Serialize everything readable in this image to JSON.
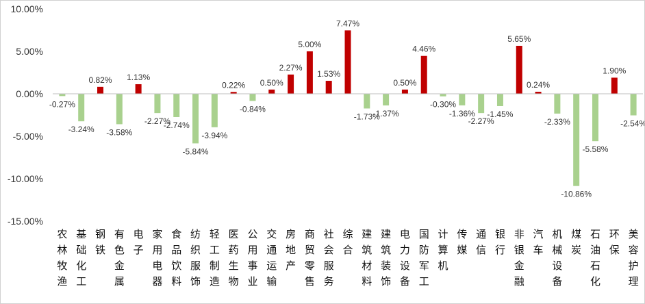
{
  "chart_data": {
    "type": "bar",
    "ylim": [
      -15,
      10
    ],
    "yticks": [
      "10.00%",
      "5.00%",
      "0.00%",
      "-5.00%",
      "-10.00%",
      "-15.00%"
    ],
    "ytick_values": [
      10,
      5,
      0,
      -5,
      -10,
      -15
    ],
    "grid": false,
    "colors": {
      "positive": "#c00000",
      "negative": "#a9d18e"
    },
    "categories": [
      "农林牧渔",
      "基础化工",
      "钢铁",
      "有色金属",
      "电子",
      "家用电器",
      "食品饮料",
      "纺织服饰",
      "轻工制造",
      "医药生物",
      "公用事业",
      "交通运输",
      "房地产",
      "商贸零售",
      "社会服务",
      "综合",
      "建筑材料",
      "建筑装饰",
      "电力设备",
      "国防军工",
      "计算机",
      "传媒",
      "通信",
      "银行",
      "非银金融",
      "汽车",
      "机械设备",
      "煤炭",
      "石油石化",
      "环保",
      "美容护理"
    ],
    "values": [
      -0.27,
      -3.24,
      0.82,
      -3.58,
      1.13,
      -2.27,
      -2.74,
      -5.84,
      -3.94,
      0.22,
      -0.84,
      0.5,
      2.27,
      5.0,
      1.53,
      7.47,
      -1.73,
      -1.37,
      0.5,
      4.46,
      -0.3,
      -1.36,
      -2.27,
      -1.45,
      5.65,
      0.24,
      -2.33,
      -10.86,
      -5.58,
      1.9,
      -2.54
    ],
    "labels": [
      "-0.27%",
      "-3.24%",
      "0.82%",
      "-3.58%",
      "1.13%",
      "-2.27%",
      "-2.74%",
      "-5.84%",
      "-3.94%",
      "0.22%",
      "-0.84%",
      "0.50%",
      "2.27%",
      "5.00%",
      "1.53%",
      "7.47%",
      "-1.73%",
      "-1.37%",
      "0.50%",
      "4.46%",
      "-0.30%",
      "-1.36%",
      "-2.27%",
      "-1.45%",
      "5.65%",
      "0.24%",
      "-2.33%",
      "-10.86%",
      "-5.58%",
      "1.90%",
      "-2.54%"
    ]
  }
}
